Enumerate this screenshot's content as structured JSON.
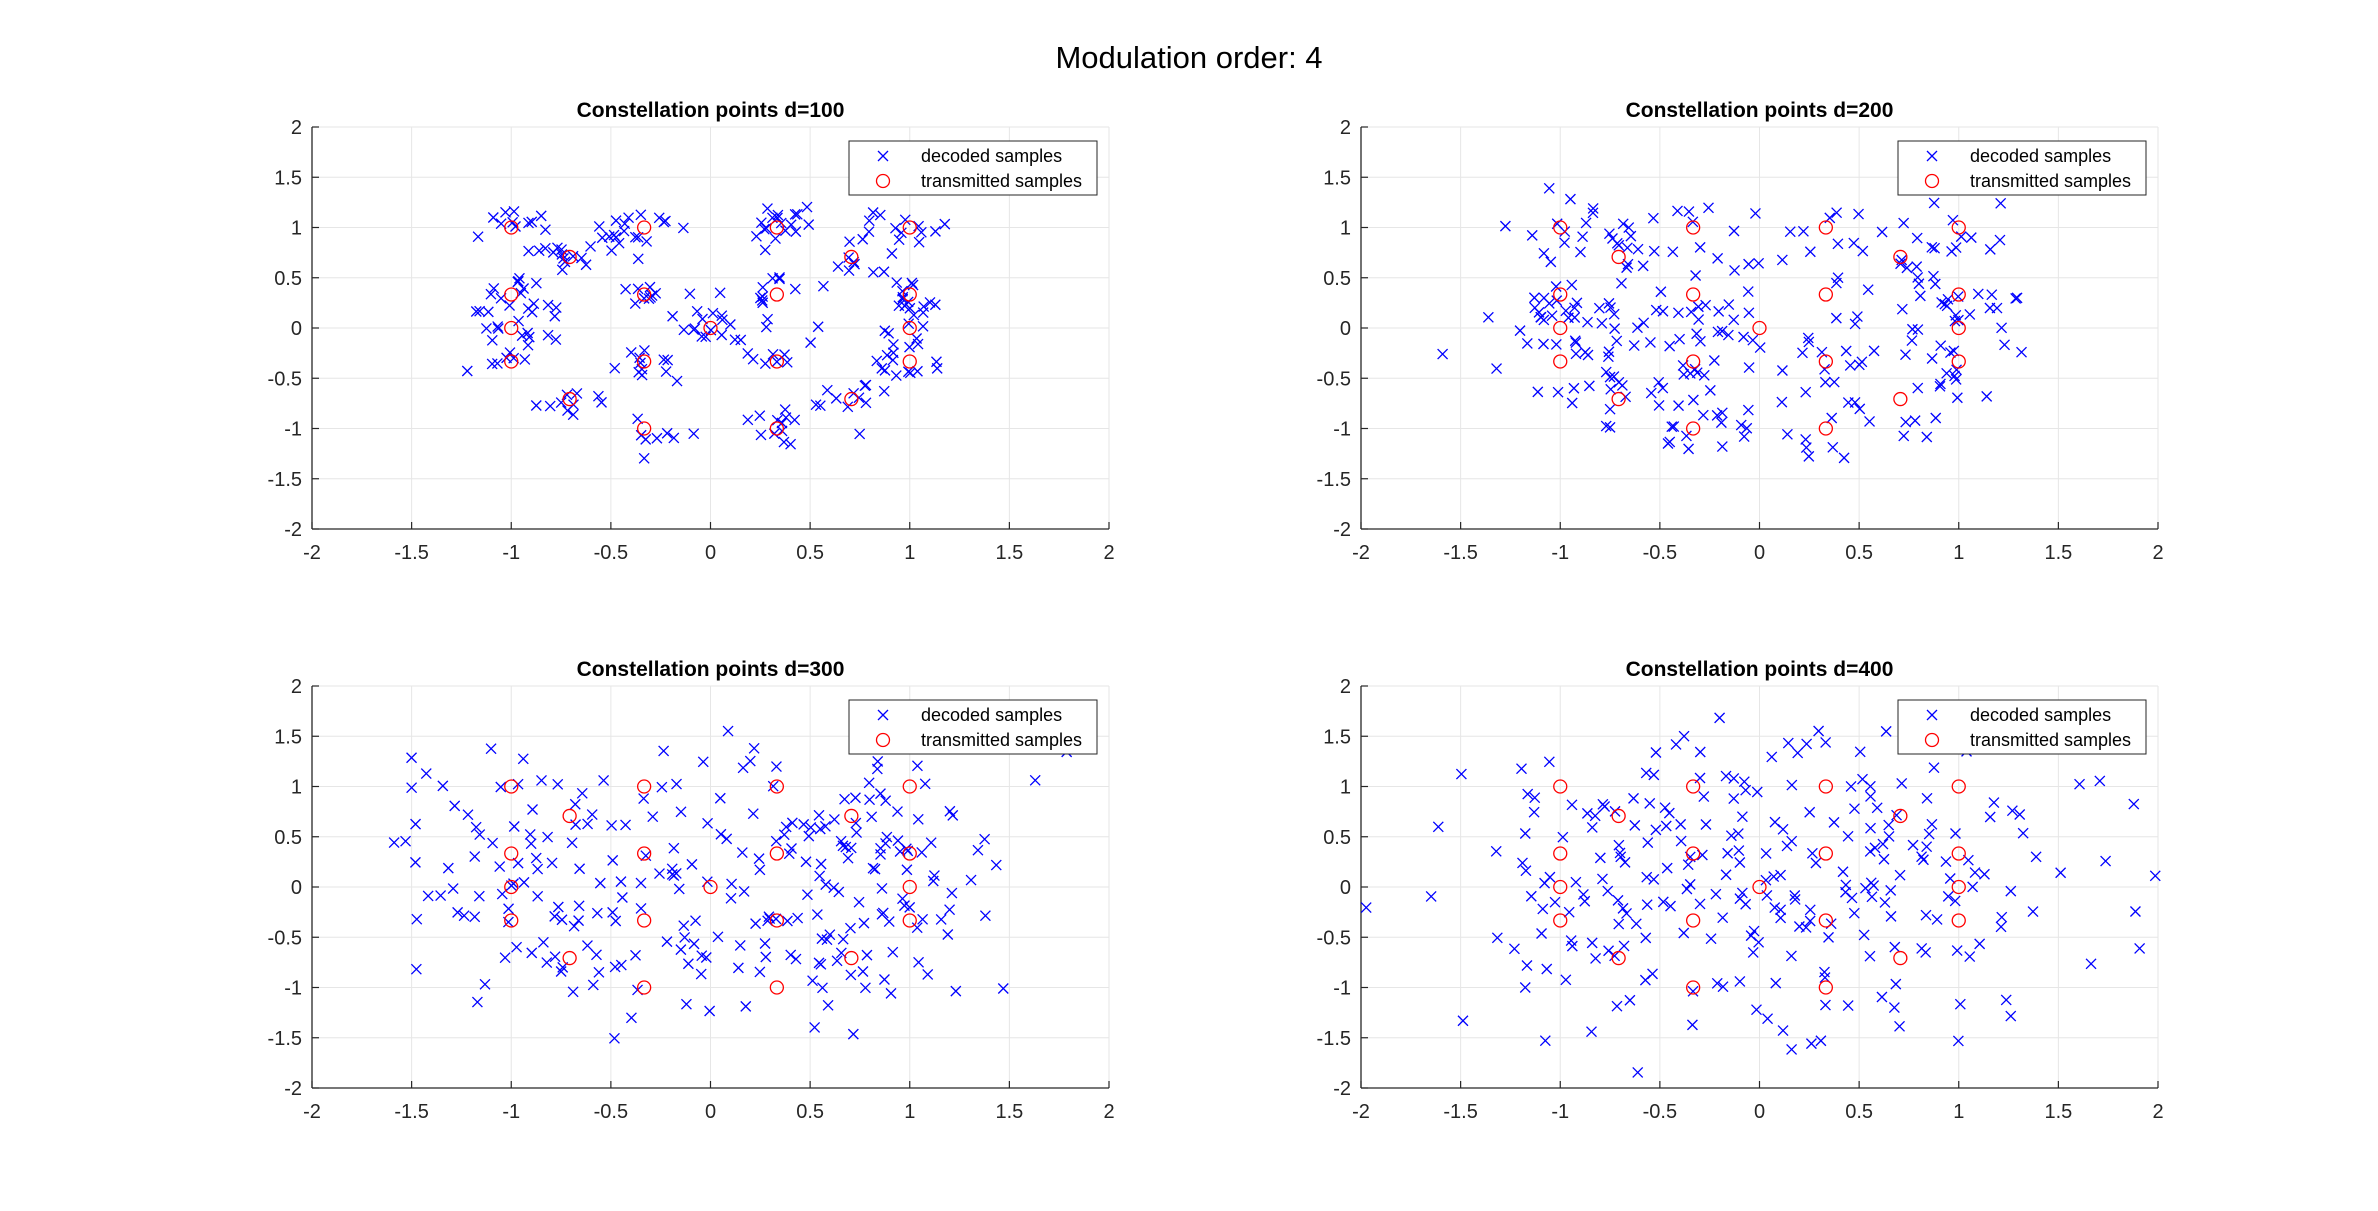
{
  "figure": {
    "suptitle": "Modulation order: 4",
    "colors": {
      "decoded": "#0000ff",
      "transmitted": "#ff0000",
      "grid": "#e6e6e6",
      "axis": "#262626"
    }
  },
  "transmitted_points": {
    "x": [
      0,
      1,
      0.333,
      -0.333,
      -1,
      0.707,
      -0.707,
      1,
      1,
      1,
      -1,
      -1,
      -1,
      0.333,
      -0.333,
      0.333,
      0.333,
      -0.333,
      -0.333,
      -0.707,
      0.707
    ],
    "y": [
      0,
      0,
      1,
      1,
      0,
      0.707,
      0.707,
      1,
      0.333,
      -0.333,
      0.333,
      -0.333,
      1,
      0.333,
      0.333,
      -0.333,
      -1,
      -1,
      -0.333,
      -0.707,
      -0.707
    ]
  },
  "chart_data": [
    {
      "type": "scatter",
      "title": "Constellation points d=100",
      "xlim": [
        -2,
        2
      ],
      "ylim": [
        -2,
        2
      ],
      "xticks": [
        "-2",
        "-1.5",
        "-1",
        "-0.5",
        "0",
        "0.5",
        "1",
        "1.5",
        "2"
      ],
      "yticks": [
        "2",
        "1.5",
        "1",
        "0.5",
        "0",
        "-0.5",
        "-1",
        "-1.5",
        "-2"
      ],
      "grid": true,
      "legend_position": "top-right",
      "series": [
        {
          "name": "decoded samples",
          "marker": "x",
          "color": "#0000ff",
          "noise_sd": 0.1,
          "seed": 11
        },
        {
          "name": "transmitted samples",
          "marker": "o",
          "color": "#ff0000"
        }
      ]
    },
    {
      "type": "scatter",
      "title": "Constellation points d=200",
      "xlim": [
        -2,
        2
      ],
      "ylim": [
        -2,
        2
      ],
      "xticks": [
        "-2",
        "-1.5",
        "-1",
        "-0.5",
        "0",
        "0.5",
        "1",
        "1.5",
        "2"
      ],
      "yticks": [
        "2",
        "1.5",
        "1",
        "0.5",
        "0",
        "-0.5",
        "-1",
        "-1.5",
        "-2"
      ],
      "grid": true,
      "legend_position": "top-right",
      "series": [
        {
          "name": "decoded samples",
          "marker": "x",
          "color": "#0000ff",
          "noise_sd": 0.2,
          "seed": 22
        },
        {
          "name": "transmitted samples",
          "marker": "o",
          "color": "#ff0000"
        }
      ]
    },
    {
      "type": "scatter",
      "title": "Constellation points d=300",
      "xlim": [
        -2,
        2
      ],
      "ylim": [
        -2,
        2
      ],
      "xticks": [
        "-2",
        "-1.5",
        "-1",
        "-0.5",
        "0",
        "0.5",
        "1",
        "1.5",
        "2"
      ],
      "yticks": [
        "2",
        "1.5",
        "1",
        "0.5",
        "0",
        "-0.5",
        "-1",
        "-1.5",
        "-2"
      ],
      "grid": true,
      "legend_position": "top-right",
      "series": [
        {
          "name": "decoded samples",
          "marker": "x",
          "color": "#0000ff",
          "noise_sd": 0.3,
          "seed": 33
        },
        {
          "name": "transmitted samples",
          "marker": "o",
          "color": "#ff0000"
        }
      ]
    },
    {
      "type": "scatter",
      "title": "Constellation points d=400",
      "xlim": [
        -2,
        2
      ],
      "ylim": [
        -2,
        2
      ],
      "xticks": [
        "-2",
        "-1.5",
        "-1",
        "-0.5",
        "0",
        "0.5",
        "1",
        "1.5",
        "2"
      ],
      "yticks": [
        "2",
        "1.5",
        "1",
        "0.5",
        "0",
        "-0.5",
        "-1",
        "-1.5",
        "-2"
      ],
      "grid": true,
      "legend_position": "top-right",
      "series": [
        {
          "name": "decoded samples",
          "marker": "x",
          "color": "#0000ff",
          "noise_sd": 0.4,
          "seed": 44
        },
        {
          "name": "transmitted samples",
          "marker": "o",
          "color": "#ff0000"
        }
      ]
    }
  ]
}
